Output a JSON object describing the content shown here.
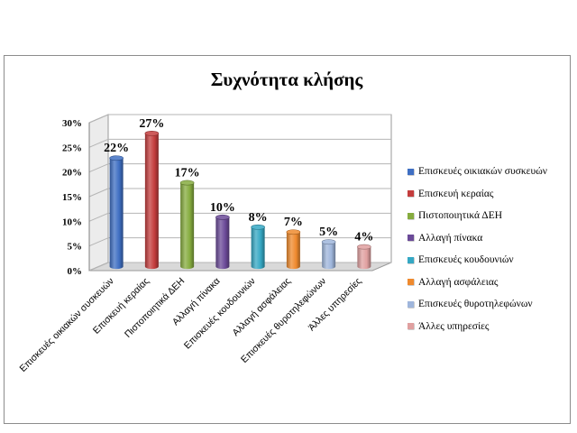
{
  "chart_data": {
    "type": "bar",
    "title": "Συχνότητα κλήσης",
    "categories": [
      "Επισκευές οικιακών συσκευών",
      "Επισκευή κεραίας",
      "Πιστοποιητικά ΔΕΗ",
      "Αλλαγή πίνακα",
      "Επισκευές κουδουνιών",
      "Αλλαγή ασφάλειας",
      "Επισκευές θυροτηλεφώνων",
      "Άλλες υπηρεσίες"
    ],
    "values": [
      22,
      27,
      17,
      10,
      8,
      7,
      5,
      4
    ],
    "data_labels": [
      "22%",
      "27%",
      "17%",
      "10%",
      "8%",
      "7%",
      "5%",
      "4%"
    ],
    "legend": [
      "Επισκευές οικιακών συσκευών",
      "Επισκευή κεραίας",
      "Πιστοποιητικά ΔΕΗ",
      "Αλλαγή πίνακα",
      "Επισκευές κουδουνιών",
      "Αλλαγή ασφάλειας",
      "Επισκευές θυροτηλεφώνων",
      "Άλλες υπηρεσίες"
    ],
    "yticks": [
      "0%",
      "5%",
      "10%",
      "15%",
      "20%",
      "25%",
      "30%"
    ],
    "ylim": [
      0,
      30
    ],
    "grid": true,
    "legend_position": "right",
    "colors": [
      "#3f6fc3",
      "#c43d3d",
      "#86ac3f",
      "#6b4a98",
      "#35a8c4",
      "#ef8a2e",
      "#9fb6dc",
      "#e0a0a0"
    ]
  }
}
